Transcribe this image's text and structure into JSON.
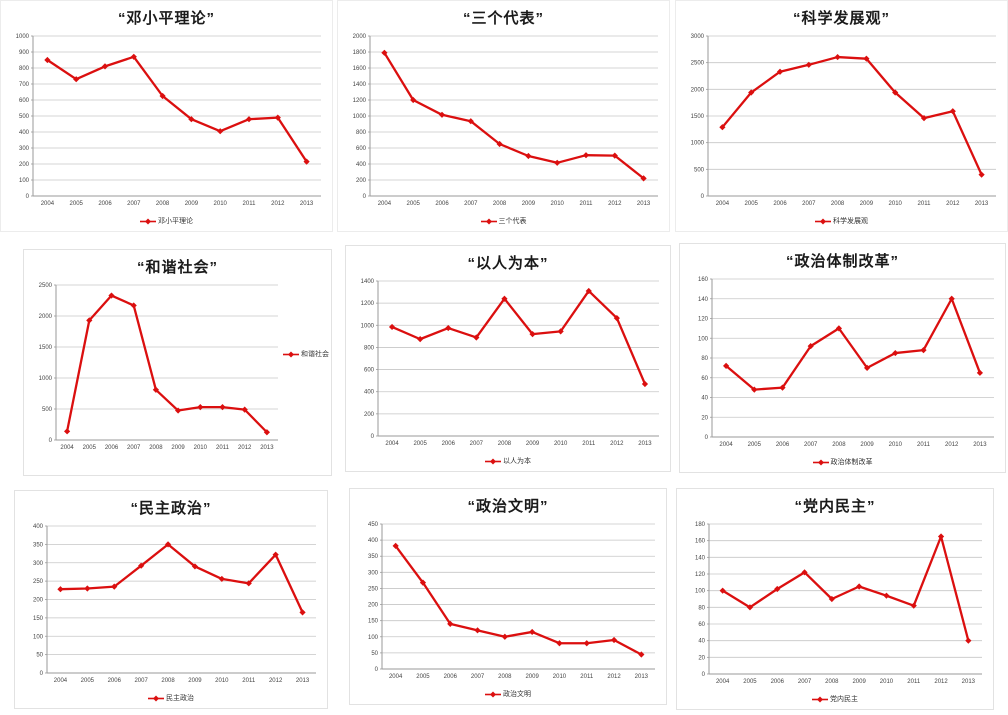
{
  "page": {
    "background": "#ffffff"
  },
  "colors": {
    "line": "#db0f0f",
    "grid": "#c6c6c6",
    "axis": "#9a9a9a",
    "tick_text": "#444444",
    "title_text": "#1a1a1a"
  },
  "chart_data": [
    {
      "type": "line",
      "title": "“邓小平理论”",
      "legend": "邓小平理论",
      "legend_position": "bottom",
      "x": [
        2004,
        2005,
        2006,
        2007,
        2008,
        2009,
        2010,
        2011,
        2012,
        2013
      ],
      "values": [
        850,
        730,
        810,
        870,
        625,
        480,
        405,
        480,
        490,
        215
      ],
      "ylim": [
        0,
        1000
      ],
      "ystep": 100,
      "grid": true
    },
    {
      "type": "line",
      "title": "“三个代表”",
      "legend": "三个代表",
      "legend_position": "bottom",
      "x": [
        2004,
        2005,
        2006,
        2007,
        2008,
        2009,
        2010,
        2011,
        2012,
        2013
      ],
      "values": [
        1790,
        1200,
        1015,
        935,
        650,
        500,
        415,
        510,
        505,
        220
      ],
      "ylim": [
        0,
        2000
      ],
      "ystep": 200,
      "grid": true
    },
    {
      "type": "line",
      "title": "“科学发展观”",
      "legend": "科学发展观",
      "legend_position": "bottom",
      "x": [
        2004,
        2005,
        2006,
        2007,
        2008,
        2009,
        2010,
        2011,
        2012,
        2013
      ],
      "values": [
        1290,
        1940,
        2330,
        2460,
        2605,
        2575,
        1940,
        1460,
        1590,
        400
      ],
      "ylim": [
        0,
        3000
      ],
      "ystep": 500,
      "grid": true
    },
    {
      "type": "line",
      "title": "“和谐社会”",
      "legend": "和谐社会",
      "legend_position": "right",
      "x": [
        2004,
        2005,
        2006,
        2007,
        2008,
        2009,
        2010,
        2011,
        2012,
        2013
      ],
      "values": [
        140,
        1930,
        2330,
        2170,
        810,
        475,
        530,
        530,
        490,
        125
      ],
      "ylim": [
        0,
        2500
      ],
      "ystep": 500,
      "grid": true
    },
    {
      "type": "line",
      "title": "“以人为本”",
      "legend": "以人为本",
      "legend_position": "bottom",
      "x": [
        2004,
        2005,
        2006,
        2007,
        2008,
        2009,
        2010,
        2011,
        2012,
        2013
      ],
      "values": [
        985,
        875,
        975,
        890,
        1240,
        920,
        945,
        1310,
        1065,
        470
      ],
      "ylim": [
        0,
        1400
      ],
      "ystep": 200,
      "grid": true
    },
    {
      "type": "line",
      "title": "“政治体制改革”",
      "legend": "政治体制改革",
      "legend_position": "bottom",
      "x": [
        2004,
        2005,
        2006,
        2007,
        2008,
        2009,
        2010,
        2011,
        2012,
        2013
      ],
      "values": [
        72,
        48,
        50,
        92,
        110,
        70,
        85,
        88,
        140,
        65
      ],
      "ylim": [
        0,
        160
      ],
      "ystep": 20,
      "grid": true
    },
    {
      "type": "line",
      "title": "“民主政治”",
      "legend": "民主政治",
      "legend_position": "bottom",
      "x": [
        2004,
        2005,
        2006,
        2007,
        2008,
        2009,
        2010,
        2011,
        2012,
        2013
      ],
      "values": [
        228,
        230,
        235,
        292,
        350,
        290,
        256,
        244,
        322,
        165
      ],
      "ylim": [
        0,
        400
      ],
      "ystep": 50,
      "grid": true
    },
    {
      "type": "line",
      "title": "“政治文明”",
      "legend": "政治文明",
      "legend_position": "bottom",
      "x": [
        2004,
        2005,
        2006,
        2007,
        2008,
        2009,
        2010,
        2011,
        2012,
        2013
      ],
      "values": [
        382,
        268,
        140,
        120,
        100,
        115,
        80,
        80,
        90,
        45
      ],
      "ylim": [
        0,
        450
      ],
      "ystep": 50,
      "grid": true
    },
    {
      "type": "line",
      "title": "“党内民主”",
      "legend": "党内民主",
      "legend_position": "bottom",
      "x": [
        2004,
        2005,
        2006,
        2007,
        2008,
        2009,
        2010,
        2011,
        2012,
        2013
      ],
      "values": [
        100,
        80,
        102,
        122,
        90,
        105,
        94,
        82,
        165,
        40
      ],
      "ylim": [
        0,
        180
      ],
      "ystep": 20,
      "grid": true
    }
  ]
}
